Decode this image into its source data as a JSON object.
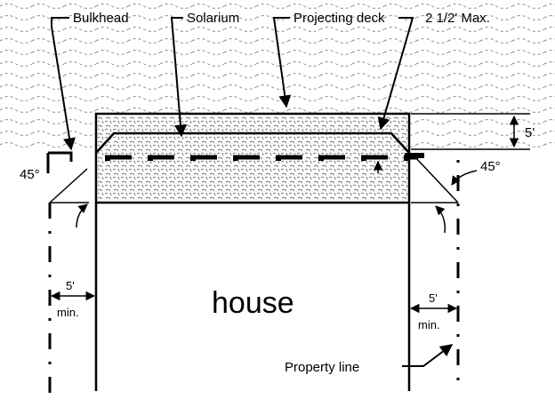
{
  "labels": {
    "bulkhead": "Bulkhead",
    "solarium": "Solarium",
    "projecting_deck": "Projecting deck",
    "max_height": "2 1/2' Max.",
    "deck_depth": "5'",
    "angle_left": "45°",
    "angle_right": "45°",
    "setback_left_value": "5'",
    "setback_left_unit": "min.",
    "setback_right_value": "5'",
    "setback_right_unit": "min.",
    "house": "house",
    "property_line": "Property line"
  },
  "colors": {
    "ink": "#000000",
    "water": "#8a8a8a",
    "background": "#ffffff"
  }
}
